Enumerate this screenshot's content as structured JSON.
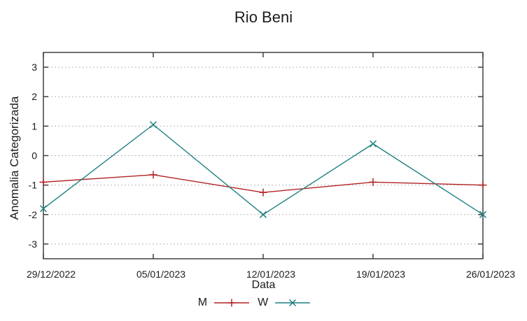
{
  "chart_data": {
    "type": "line",
    "title": "Rio Beni",
    "xlabel": "Data",
    "ylabel": "Anomalia Categorizada",
    "categories": [
      "29/12/2022",
      "05/01/2023",
      "12/01/2023",
      "19/01/2023",
      "26/01/2023"
    ],
    "y_ticks": [
      3,
      2,
      1,
      0,
      -1,
      -2,
      -3
    ],
    "ylim": [
      -3.5,
      3.5
    ],
    "grid": "horizontal-dotted",
    "legend_position": "bottom-center",
    "series": [
      {
        "name": "M",
        "color": "#b22222",
        "marker": "plus",
        "values": [
          -0.9,
          -0.65,
          -1.25,
          -0.9,
          -1.0
        ]
      },
      {
        "name": "W",
        "color": "#1e8080",
        "marker": "cross",
        "values": [
          -1.8,
          1.05,
          -2.0,
          0.4,
          -2.0
        ]
      }
    ],
    "colors": {
      "grid": "#b9b9b9",
      "border": "#404040",
      "text": "#1c1c1c"
    }
  }
}
